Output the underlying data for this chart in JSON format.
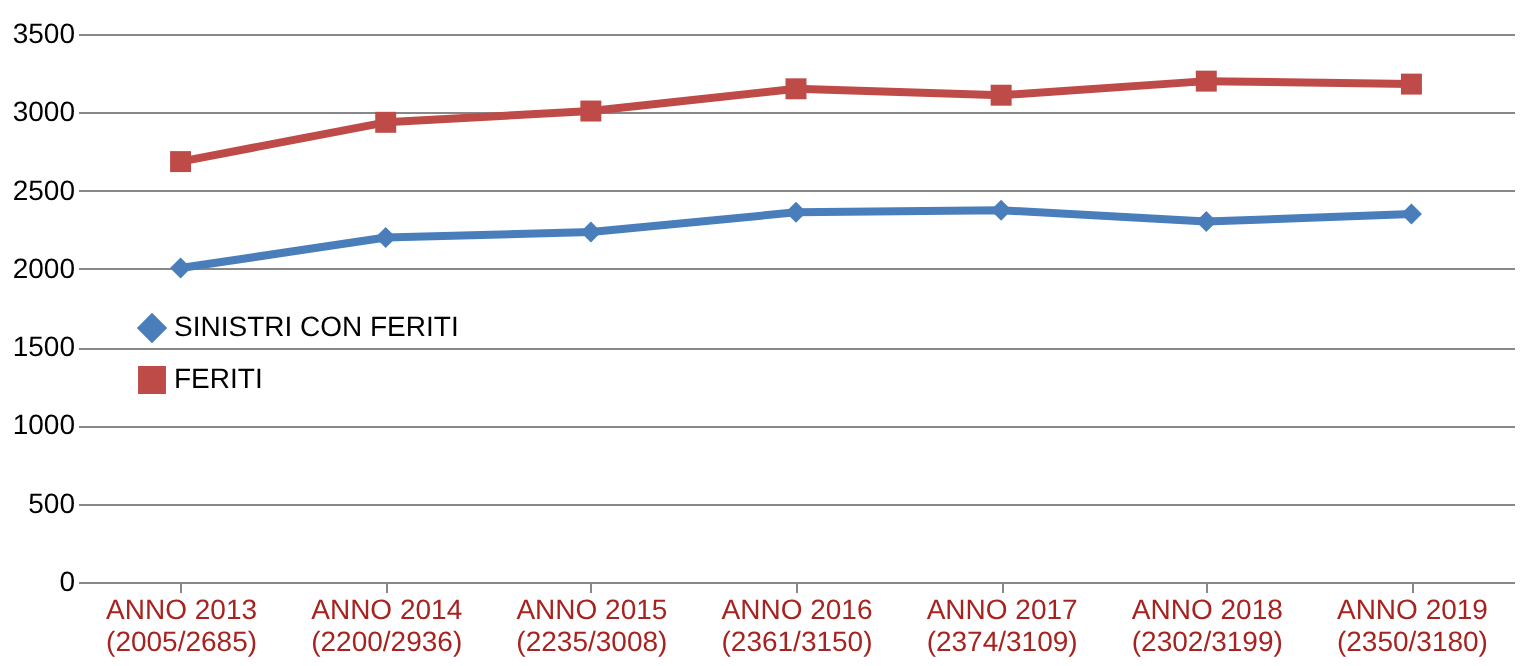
{
  "chart_data": {
    "type": "line",
    "categories": [
      "ANNO 2013\n(2005/2685)",
      "ANNO 2014\n(2200/2936)",
      "ANNO 2015\n(2235/3008)",
      "ANNO 2016\n(2361/3150)",
      "ANNO 2017\n(2374/3109)",
      "ANNO 2018\n(2302/3199)",
      "ANNO 2019\n(2350/3180)"
    ],
    "series": [
      {
        "name": "SINISTRI CON FERITI",
        "color": "#4a7ebb",
        "marker": "diamond",
        "values": [
          2005,
          2200,
          2235,
          2361,
          2374,
          2302,
          2350
        ]
      },
      {
        "name": "FERITI",
        "color": "#be4b48",
        "marker": "square",
        "values": [
          2685,
          2936,
          3008,
          3150,
          3109,
          3199,
          3180
        ]
      }
    ],
    "ylim": [
      0,
      3500
    ],
    "yticks": [
      0,
      500,
      1000,
      1500,
      2000,
      2500,
      3000,
      3500
    ],
    "grid": "y",
    "legend": "left",
    "line_style": "solid"
  }
}
